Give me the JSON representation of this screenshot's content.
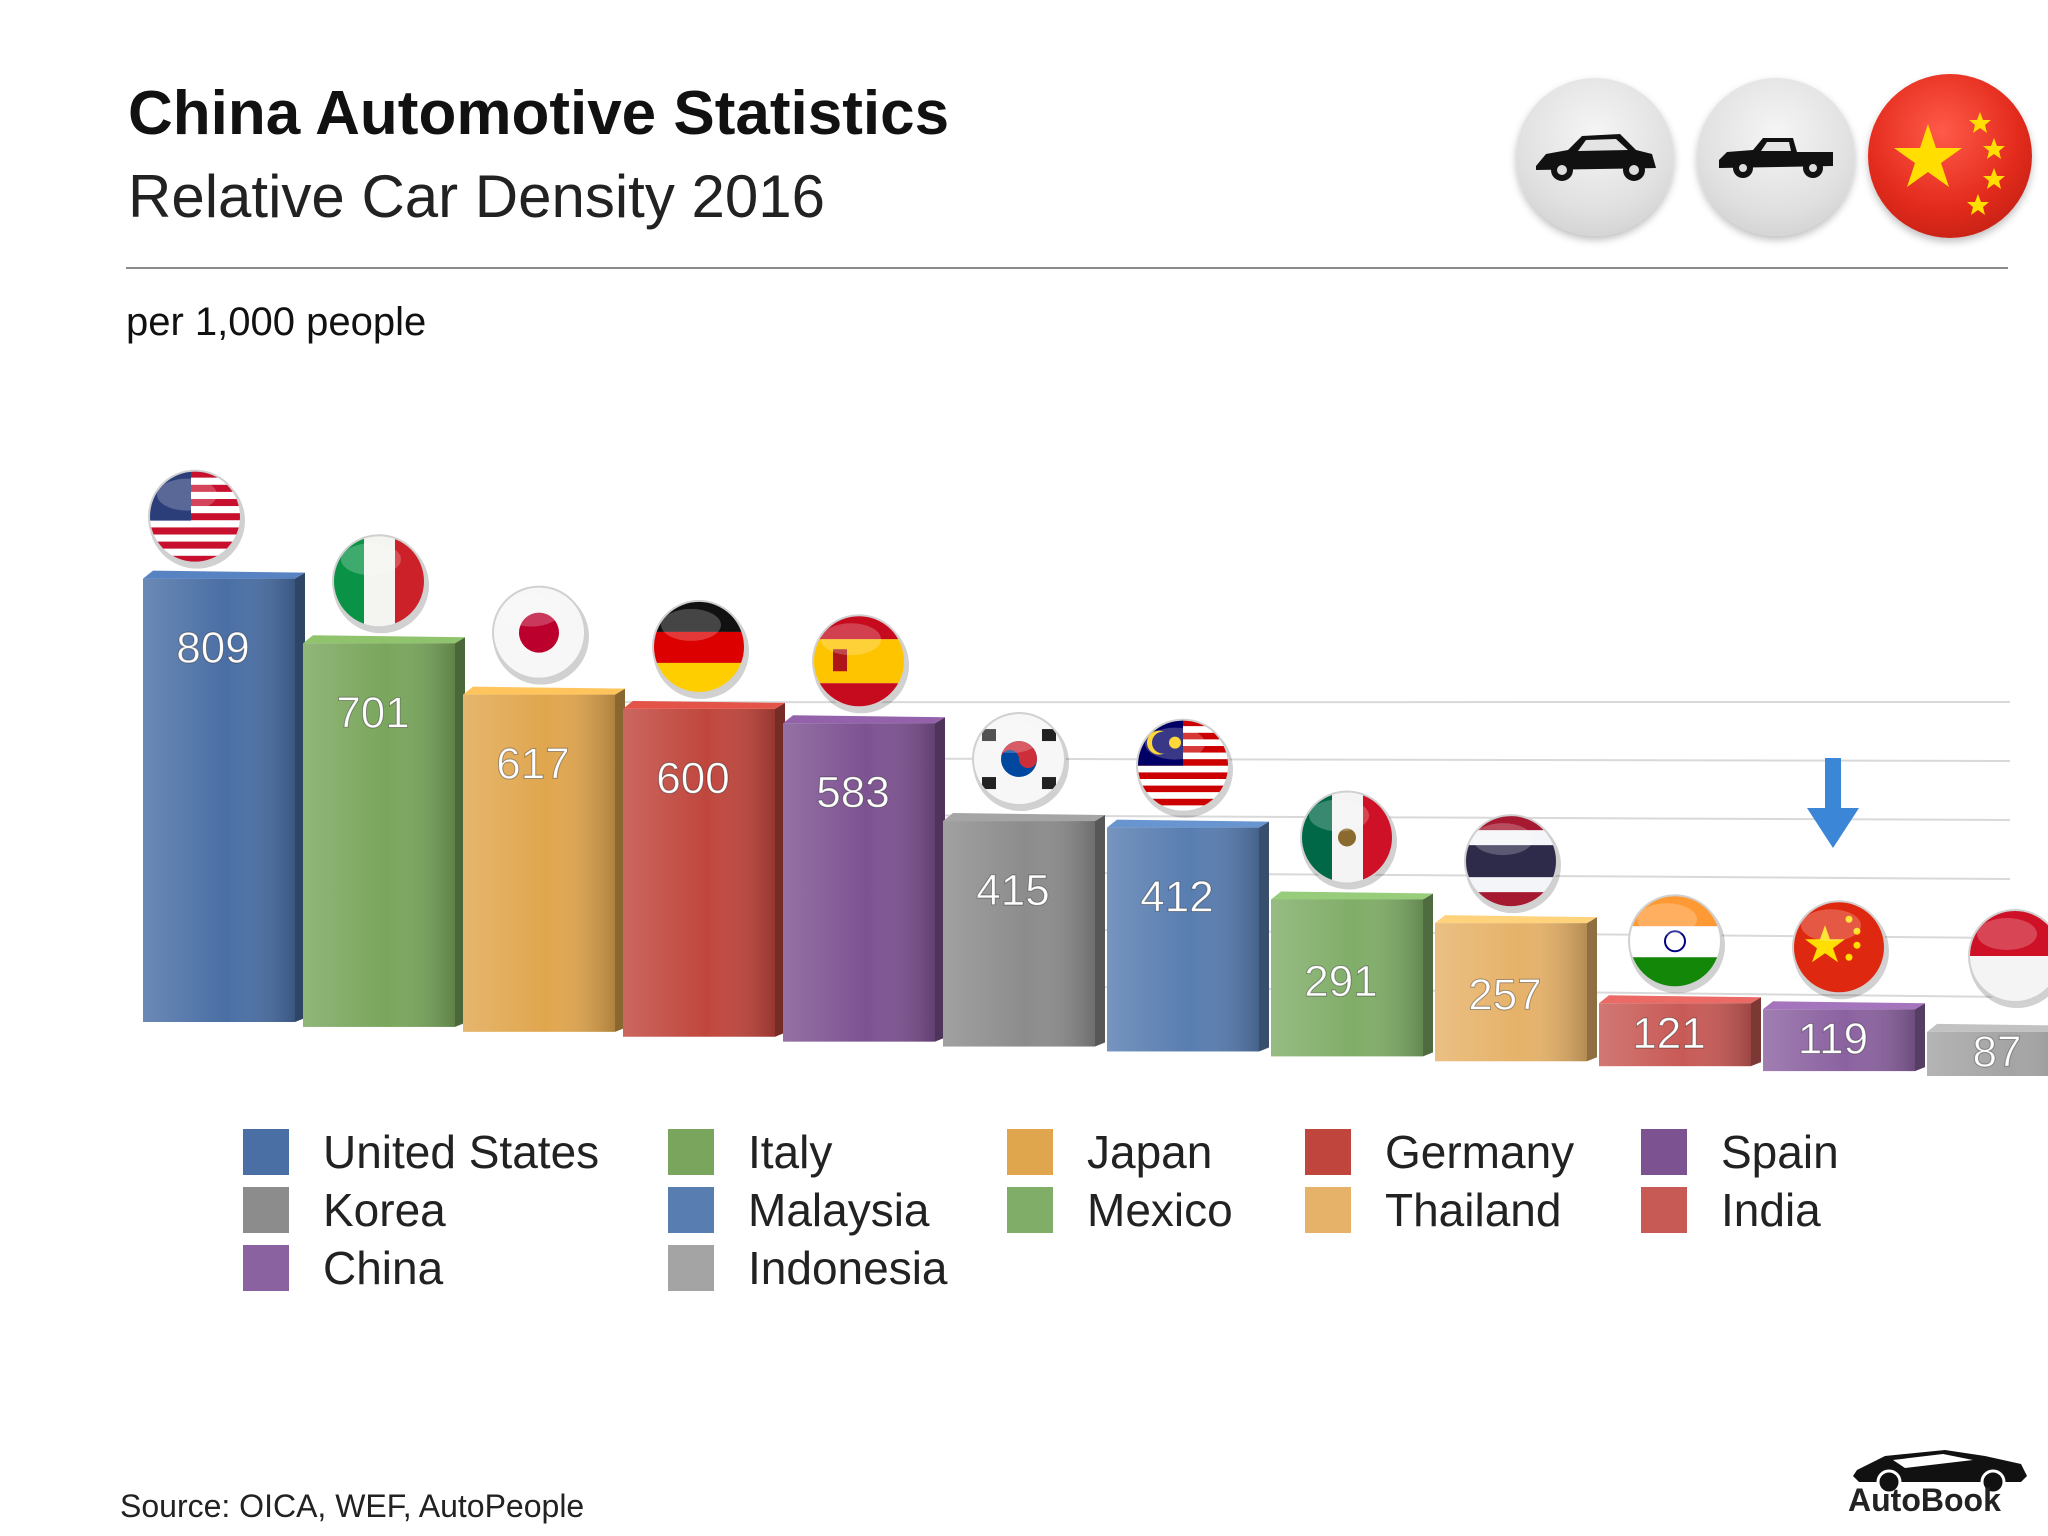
{
  "header": {
    "title": "China Automotive Statistics",
    "subtitle": "Relative Car Density 2016",
    "unit_label": "per 1,000 people"
  },
  "badges": [
    {
      "icon": "sedan-car-icon"
    },
    {
      "icon": "pickup-truck-icon"
    },
    {
      "icon": "china-flag-icon"
    }
  ],
  "colors": {
    "United States": "#4a6fa5",
    "Italy": "#79a65c",
    "Japan": "#e0a64e",
    "Germany": "#c0463d",
    "Spain": "#7d5291",
    "Korea": "#8c8c8c",
    "Malaysia": "#587db0",
    "Mexico": "#80ad68",
    "Thailand": "#e6b269",
    "India": "#c85a56",
    "China": "#8b62a0",
    "Indonesia": "#a4a4a4",
    "highlight_arrow": "#3b86d6"
  },
  "chart_data": {
    "type": "bar",
    "categories": [
      "United States",
      "Italy",
      "Japan",
      "Germany",
      "Spain",
      "Korea",
      "Malaysia",
      "Mexico",
      "Thailand",
      "India",
      "China",
      "Indonesia"
    ],
    "values": [
      809,
      701,
      617,
      600,
      583,
      415,
      412,
      291,
      257,
      121,
      119,
      87
    ],
    "data_labels": [
      "809",
      "701",
      "617",
      "600",
      "583",
      "415",
      "412",
      "291",
      "257",
      "121",
      "119",
      "87"
    ],
    "highlight": "China",
    "ylim": [
      0,
      900
    ],
    "grid": true,
    "legend": "bottom"
  },
  "legend_items": [
    "United States",
    "Italy",
    "Japan",
    "Germany",
    "Spain",
    "Korea",
    "Malaysia",
    "Mexico",
    "Thailand",
    "India",
    "China",
    "Indonesia"
  ],
  "footer": {
    "source": "Source:  OICA, WEF, AutoPeople",
    "logo_text": "AutoBook"
  }
}
